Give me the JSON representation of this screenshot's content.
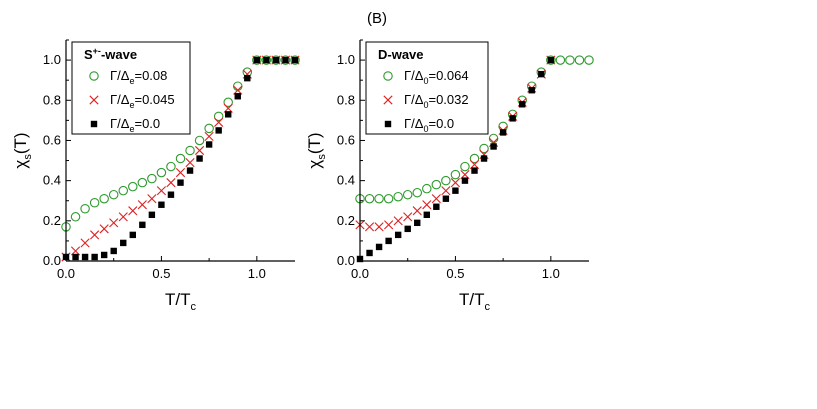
{
  "chart_data": [
    {
      "type": "scatter",
      "panel_label": "",
      "legend_title": "S+--wave",
      "xlabel": "T/Tc",
      "ylabel": "χs(T)",
      "xlim": [
        0,
        1.2
      ],
      "ylim": [
        0,
        1.1
      ],
      "x_ticks": [
        "0.0",
        "0.5",
        "1.0"
      ],
      "y_ticks": [
        "0.0",
        "0.2",
        "0.4",
        "0.6",
        "0.8",
        "1.0"
      ],
      "legend_position": "top-left",
      "series": [
        {
          "name": "Γ/Δe=0.08",
          "marker": "circle",
          "color": "#2e9a2e",
          "x": [
            0.0,
            0.05,
            0.1,
            0.15,
            0.2,
            0.25,
            0.3,
            0.35,
            0.4,
            0.45,
            0.5,
            0.55,
            0.6,
            0.65,
            0.7,
            0.75,
            0.8,
            0.85,
            0.9,
            0.95,
            1.0,
            1.05,
            1.1,
            1.15,
            1.2
          ],
          "y": [
            0.17,
            0.22,
            0.26,
            0.29,
            0.31,
            0.33,
            0.35,
            0.37,
            0.39,
            0.41,
            0.44,
            0.47,
            0.51,
            0.55,
            0.6,
            0.66,
            0.72,
            0.79,
            0.87,
            0.94,
            1.0,
            1.0,
            1.0,
            1.0,
            1.0
          ]
        },
        {
          "name": "Γ/Δe=0.045",
          "marker": "cross",
          "color": "#e02020",
          "x": [
            0.0,
            0.05,
            0.1,
            0.15,
            0.2,
            0.25,
            0.3,
            0.35,
            0.4,
            0.45,
            0.5,
            0.55,
            0.6,
            0.65,
            0.7,
            0.75,
            0.8,
            0.85,
            0.9,
            0.95,
            1.0,
            1.05,
            1.1,
            1.15,
            1.2
          ],
          "y": [
            0.02,
            0.05,
            0.09,
            0.13,
            0.16,
            0.19,
            0.22,
            0.25,
            0.28,
            0.31,
            0.35,
            0.39,
            0.44,
            0.49,
            0.55,
            0.62,
            0.69,
            0.76,
            0.85,
            0.93,
            1.0,
            1.0,
            1.0,
            1.0,
            1.0
          ]
        },
        {
          "name": "Γ/Δe=0.0",
          "marker": "square",
          "color": "#000000",
          "x": [
            0.0,
            0.05,
            0.1,
            0.15,
            0.2,
            0.25,
            0.3,
            0.35,
            0.4,
            0.45,
            0.5,
            0.55,
            0.6,
            0.65,
            0.7,
            0.75,
            0.8,
            0.85,
            0.9,
            0.95,
            1.0,
            1.05,
            1.1,
            1.15,
            1.2
          ],
          "y": [
            0.02,
            0.02,
            0.02,
            0.02,
            0.03,
            0.05,
            0.09,
            0.13,
            0.18,
            0.23,
            0.28,
            0.33,
            0.39,
            0.45,
            0.51,
            0.58,
            0.65,
            0.73,
            0.82,
            0.91,
            1.0,
            1.0,
            1.0,
            1.0,
            1.0
          ]
        }
      ]
    },
    {
      "type": "scatter",
      "panel_label": "(B)",
      "legend_title": "D-wave",
      "xlabel": "T/Tc",
      "ylabel": "χs(T)",
      "xlim": [
        0,
        1.2
      ],
      "ylim": [
        0,
        1.1
      ],
      "x_ticks": [
        "0.0",
        "0.5",
        "1.0"
      ],
      "y_ticks": [
        "0.0",
        "0.2",
        "0.4",
        "0.6",
        "0.8",
        "1.0"
      ],
      "legend_position": "top-left",
      "series": [
        {
          "name": "Γ/Δ0=0.064",
          "marker": "circle",
          "color": "#2e9a2e",
          "x": [
            0.0,
            0.05,
            0.1,
            0.15,
            0.2,
            0.25,
            0.3,
            0.35,
            0.4,
            0.45,
            0.5,
            0.55,
            0.6,
            0.65,
            0.7,
            0.75,
            0.8,
            0.85,
            0.9,
            0.95,
            1.0,
            1.05,
            1.1,
            1.15,
            1.2
          ],
          "y": [
            0.31,
            0.31,
            0.31,
            0.31,
            0.32,
            0.33,
            0.34,
            0.36,
            0.38,
            0.4,
            0.43,
            0.47,
            0.51,
            0.56,
            0.61,
            0.67,
            0.73,
            0.8,
            0.87,
            0.94,
            1.0,
            1.0,
            1.0,
            1.0,
            1.0
          ]
        },
        {
          "name": "Γ/Δ0=0.032",
          "marker": "cross",
          "color": "#e02020",
          "x": [
            0.0,
            0.05,
            0.1,
            0.15,
            0.2,
            0.25,
            0.3,
            0.35,
            0.4,
            0.45,
            0.5,
            0.55,
            0.6,
            0.65,
            0.7,
            0.75,
            0.8,
            0.85,
            0.9,
            0.95,
            1.0
          ],
          "y": [
            0.18,
            0.17,
            0.17,
            0.18,
            0.2,
            0.22,
            0.25,
            0.28,
            0.31,
            0.35,
            0.39,
            0.43,
            0.48,
            0.53,
            0.59,
            0.65,
            0.72,
            0.79,
            0.86,
            0.93,
            1.0
          ]
        },
        {
          "name": "Γ/Δ0=0.0",
          "marker": "square",
          "color": "#000000",
          "x": [
            0.0,
            0.05,
            0.1,
            0.15,
            0.2,
            0.25,
            0.3,
            0.35,
            0.4,
            0.45,
            0.5,
            0.55,
            0.6,
            0.65,
            0.7,
            0.75,
            0.8,
            0.85,
            0.9,
            0.95,
            1.0
          ],
          "y": [
            0.01,
            0.04,
            0.07,
            0.1,
            0.13,
            0.16,
            0.19,
            0.23,
            0.27,
            0.31,
            0.35,
            0.4,
            0.45,
            0.51,
            0.57,
            0.64,
            0.71,
            0.78,
            0.85,
            0.93,
            1.0
          ]
        }
      ]
    }
  ]
}
